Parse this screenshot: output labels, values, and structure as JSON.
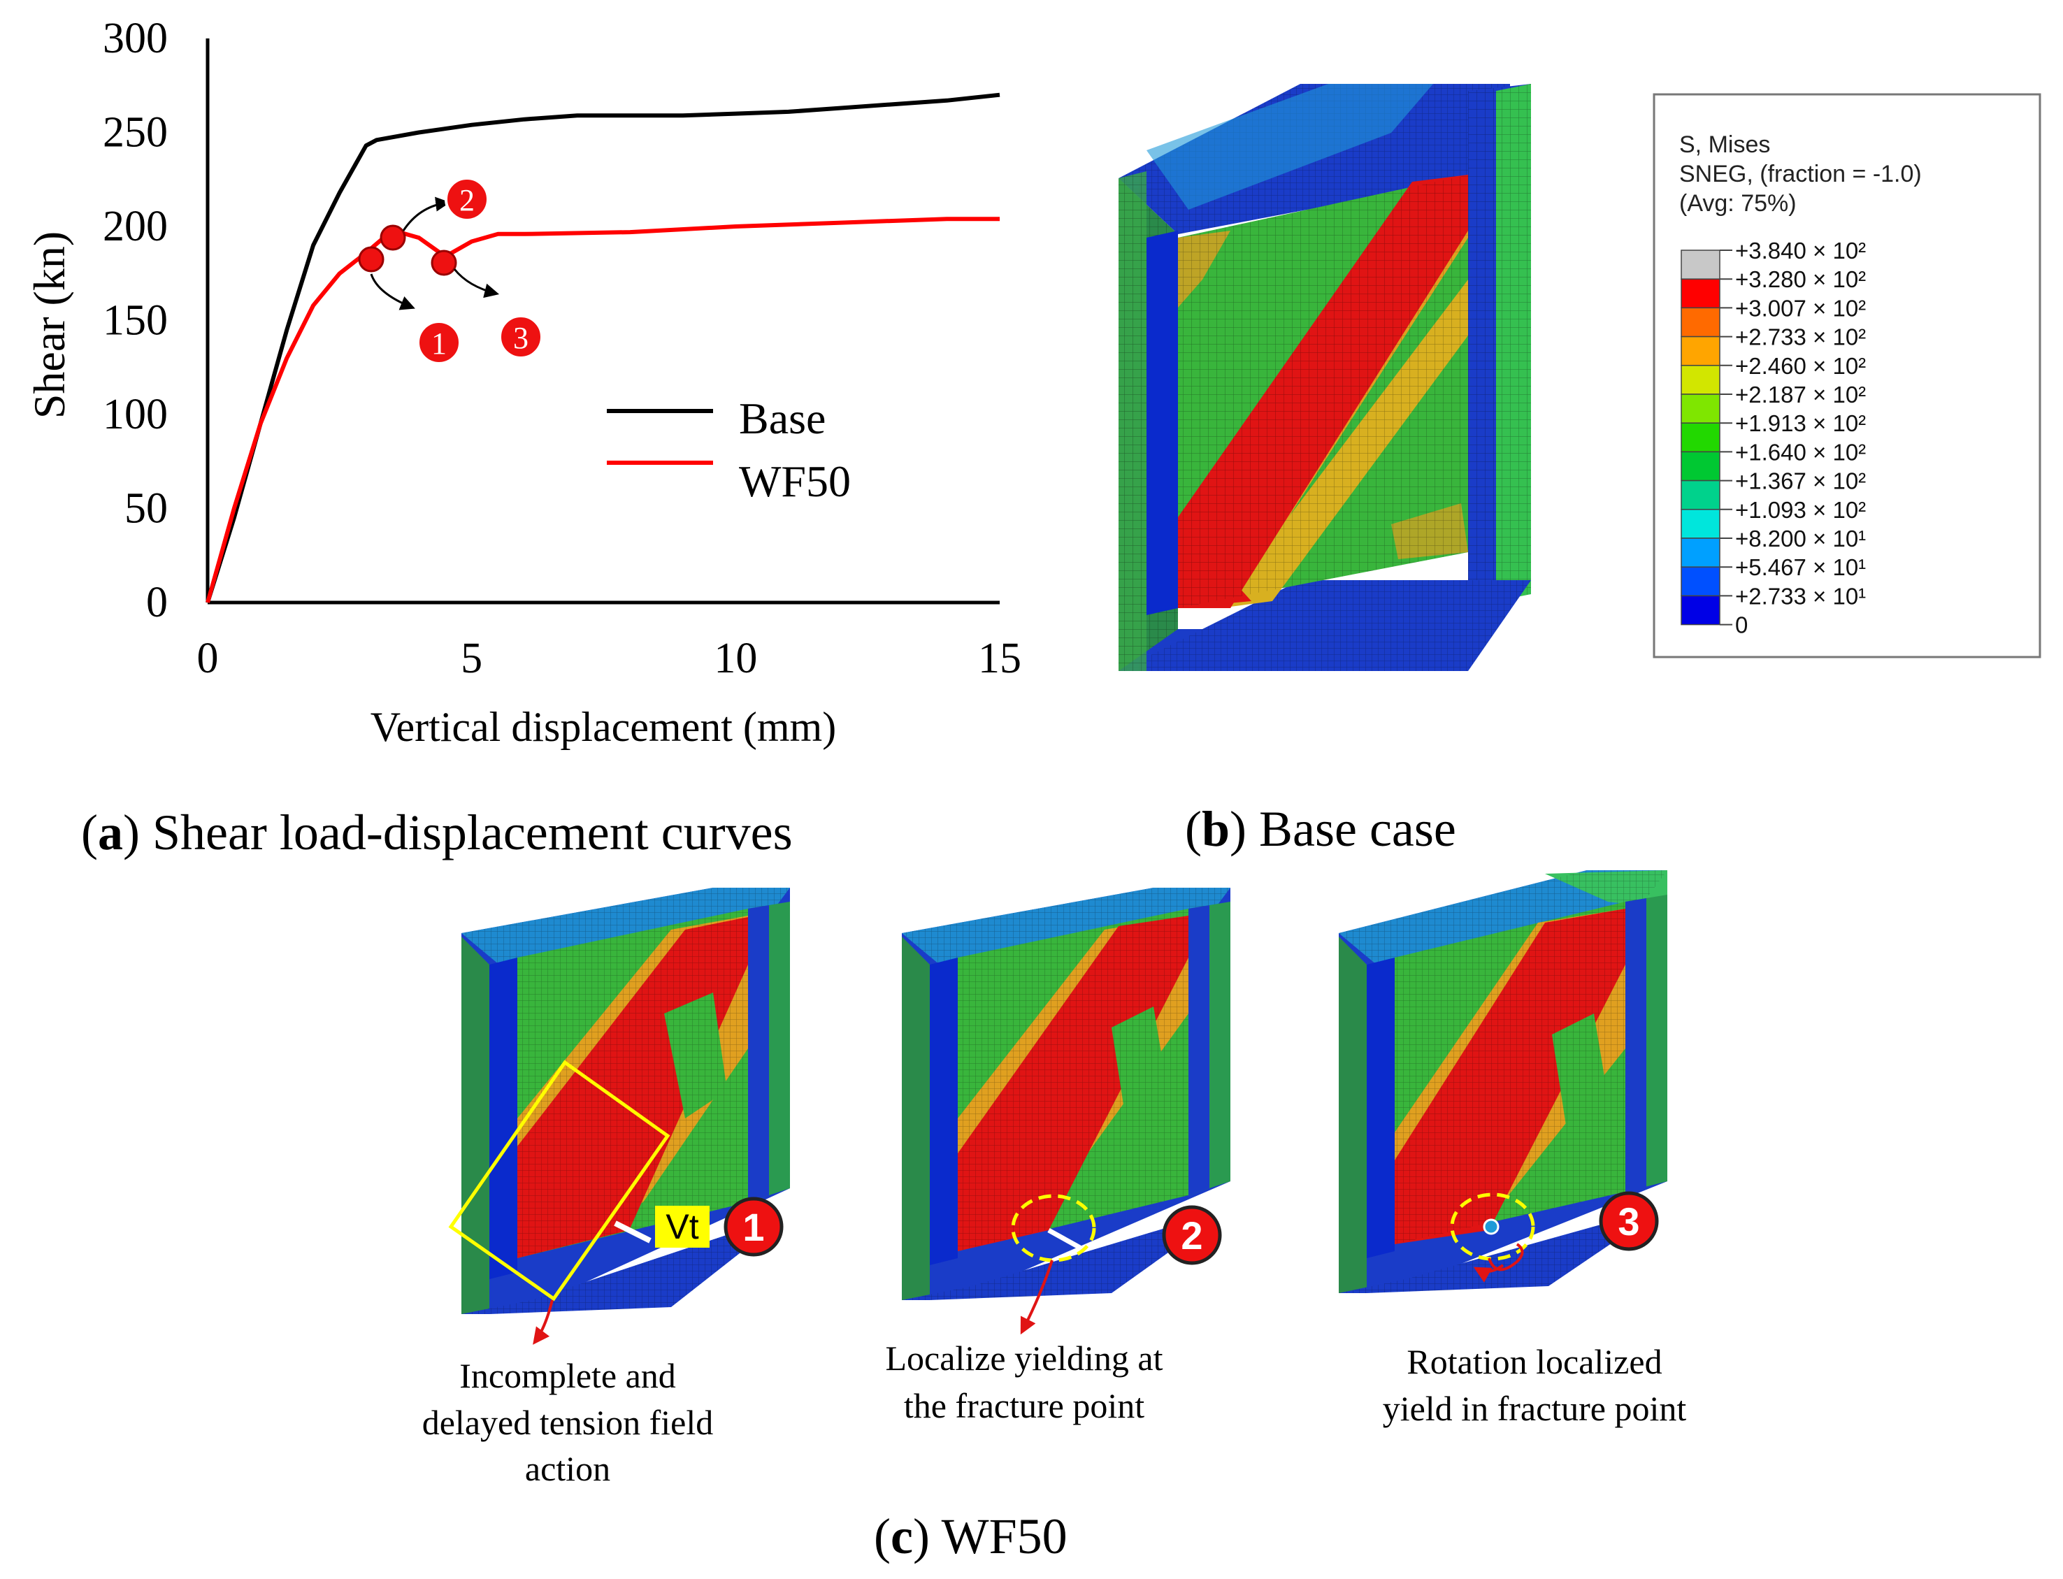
{
  "chart_data": {
    "type": "line",
    "title": "",
    "xlabel": "Vertical displacement (mm)",
    "ylabel": "Shear (kn)",
    "xlim": [
      0,
      15
    ],
    "ylim": [
      0,
      300
    ],
    "xticks": [
      "0",
      "5",
      "10",
      "15"
    ],
    "yticks": [
      "0",
      "50",
      "100",
      "150",
      "200",
      "250",
      "300"
    ],
    "legend_position": "center-right",
    "series": [
      {
        "name": "Base",
        "color": "#000000",
        "x": [
          0,
          0.5,
          1,
          1.5,
          2,
          2.5,
          3,
          3.2,
          4,
          5,
          6,
          7,
          8,
          9,
          10,
          11,
          12,
          13,
          14,
          15
        ],
        "y": [
          0,
          45,
          95,
          145,
          190,
          218,
          243,
          246,
          250,
          254,
          257,
          259,
          259,
          259,
          260,
          261,
          263,
          265,
          267,
          270
        ]
      },
      {
        "name": "WF50",
        "color": "#ff0000",
        "x": [
          0,
          0.5,
          1,
          1.5,
          2,
          2.5,
          3,
          3.5,
          4,
          4.5,
          5,
          5.5,
          6,
          8,
          10,
          12,
          14,
          15
        ],
        "y": [
          0,
          50,
          95,
          130,
          158,
          175,
          186,
          198,
          194,
          184,
          192,
          196,
          196,
          197,
          200,
          202,
          204,
          204
        ]
      }
    ],
    "annotations": [
      {
        "label": "1",
        "x": 3.2,
        "y": 182
      },
      {
        "label": "2",
        "x": 3.6,
        "y": 193
      },
      {
        "label": "3",
        "x": 4.5,
        "y": 180
      }
    ]
  },
  "captions": {
    "a_letter": "a",
    "a_text": ") Shear load-displacement curves",
    "b_letter": "b",
    "b_text": ") Base case",
    "c_letter": "c",
    "c_text": ") WF50"
  },
  "legend_box": {
    "title1": "S, Mises",
    "title2": "SNEG, (fraction = -1.0)",
    "title3": "(Avg: 75%)",
    "levels": [
      "+3.840 × 10²",
      "+3.280 × 10²",
      "+3.007 × 10²",
      "+2.733 × 10²",
      "+2.460 × 10²",
      "+2.187 × 10²",
      "+1.913 × 10²",
      "+1.640 × 10²",
      "+1.367 × 10²",
      "+1.093 × 10²",
      "+8.200 × 10¹",
      "+5.467 × 10¹",
      "+2.733 × 10¹",
      "0"
    ],
    "colors": [
      "#c8c8c8",
      "#ff0000",
      "#ff6a00",
      "#ffa500",
      "#d2e600",
      "#7fe600",
      "#22d800",
      "#00c832",
      "#00d28c",
      "#00e6dc",
      "#00a0ff",
      "#0050ff",
      "#0000e6"
    ]
  },
  "panels": {
    "p1_note": [
      "Incomplete and",
      "delayed tension field",
      "action"
    ],
    "p2_note": [
      "Localize yielding at",
      "the fracture point"
    ],
    "p3_note": [
      "Rotation localized",
      "yield in fracture point"
    ],
    "vt_label": "Vt",
    "badge1": "1",
    "badge2": "2",
    "badge3": "3"
  },
  "colors": {
    "frame": "#1a3cc8",
    "web_green": "#3cb43c",
    "band_red": "#e01414",
    "yellow": "#ffff00"
  }
}
